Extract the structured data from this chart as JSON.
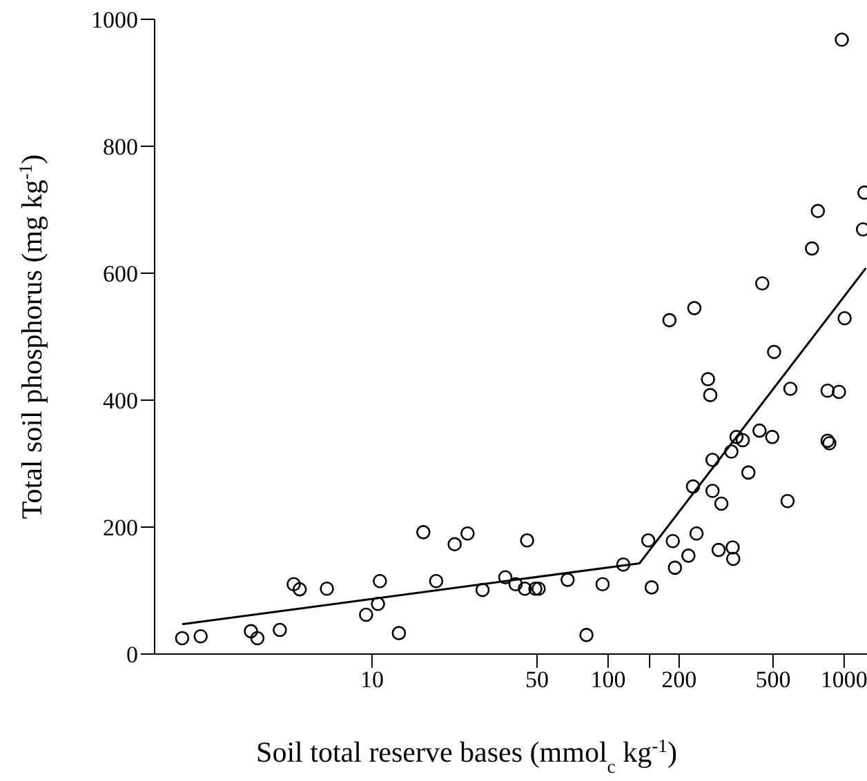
{
  "chart_data": {
    "type": "scatter",
    "xlabel": "Soil total reserve bases (mmol$_{c}$ kg$^{-1}$)",
    "ylabel": "Total soil phosphorus (mg kg$^{-1}$)",
    "log": "x",
    "xlim": [
      1.2,
      1250
    ],
    "xticks": [
      10,
      50,
      100,
      {
        "value": 150,
        "label": null
      },
      200,
      500,
      1000
    ],
    "ylim": [
      0,
      1000
    ],
    "yticks": [
      0,
      200,
      400,
      600,
      800,
      1000
    ],
    "series": [
      {
        "color": "#000000",
        "marker": "circle",
        "x": [
          1.57,
          1.88,
          3.07,
          3.27,
          4.07,
          4.66,
          4.94,
          6.44,
          9.44,
          10.6,
          10.8,
          13.0,
          16.5,
          18.7,
          22.4,
          25.4,
          29.4,
          36.7,
          40.6,
          45.4,
          44.4,
          49.2,
          50.8,
          67.4,
          81,
          94.8,
          116,
          148,
          153,
          182,
          188,
          192,
          219,
          232,
          237,
          229,
          265,
          271,
          277,
          277,
          302,
          294,
          337,
          339,
          333,
          350,
          372,
          393,
          438,
          450,
          496,
          505,
          576,
          592,
          731,
          774,
          851,
          951,
          851,
          866,
          978,
          1005,
          1219,
          1202
        ],
        "values": [
          25,
          28,
          36,
          25,
          38,
          110,
          102,
          103,
          62,
          79,
          115,
          33,
          192,
          115,
          173,
          190,
          101,
          121,
          110,
          179,
          103,
          103,
          103,
          117,
          30,
          110,
          141,
          179,
          105,
          526,
          178,
          136,
          155,
          545,
          190,
          264,
          433,
          408,
          306,
          257,
          237,
          164,
          168,
          150,
          319,
          342,
          337,
          286,
          352,
          584,
          342,
          476,
          241,
          418,
          639,
          698,
          415,
          413,
          336,
          332,
          968,
          529,
          727,
          669
        ]
      },
      {
        "type": "line",
        "marker": "none",
        "color": "#000000",
        "x": [
          1.57,
          136,
          1236
        ],
        "values": [
          47,
          143,
          608
        ]
      }
    ]
  }
}
